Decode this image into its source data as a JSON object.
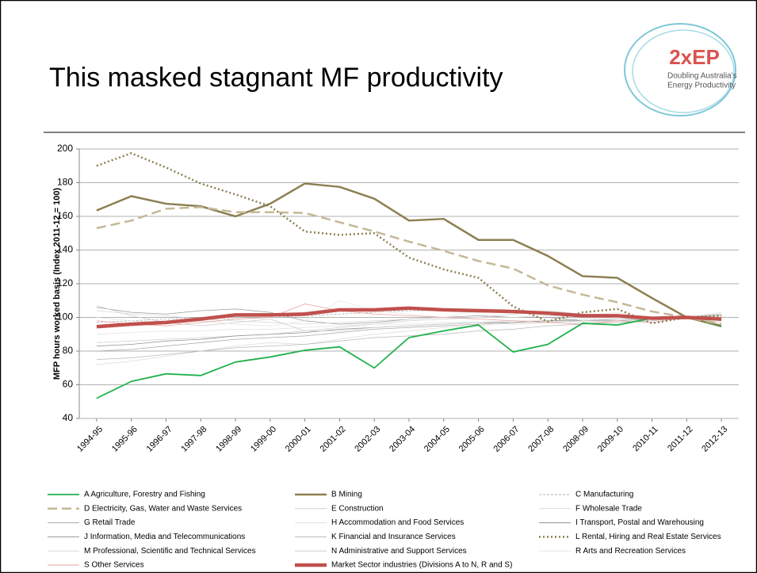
{
  "logo": {
    "name": "2xEP",
    "tagline": [
      "Doubling Australia's",
      "Energy Productivity"
    ]
  },
  "chart_data": {
    "type": "line",
    "title": "This masked stagnant MF productivity",
    "y_label": "MFP hours worked basis (Index 2011-12 = 100)",
    "categories": [
      "1994-95",
      "1995-96",
      "1996-97",
      "1997-98",
      "1998-99",
      "1999-00",
      "2000-01",
      "2001-02",
      "2002-03",
      "2003-04",
      "2004-05",
      "2005-06",
      "2006-07",
      "2007-08",
      "2008-09",
      "2009-10",
      "2010-11",
      "2011-12",
      "2012-13"
    ],
    "ylim": [
      40,
      200
    ],
    "yticks": [
      40,
      60,
      80,
      100,
      120,
      140,
      160,
      180,
      200
    ],
    "grid": true,
    "series": [
      {
        "name": "A Agriculture, Forestry and Fishing",
        "color": "#22b14c",
        "width": 1.8,
        "line_style": "solid",
        "values": [
          52,
          62,
          66.5,
          65.5,
          73.5,
          76.5,
          80.5,
          82.5,
          70,
          88,
          92,
          95.5,
          79.5,
          84,
          96.5,
          95.5,
          99.5,
          100,
          94.5
        ]
      },
      {
        "name": "B Mining",
        "color": "#8c7f52",
        "width": 2.5,
        "line_style": "solid",
        "values": [
          163.5,
          172,
          167.5,
          166,
          160,
          167.5,
          179.5,
          177.5,
          170.5,
          157.5,
          158.5,
          146,
          146,
          136.5,
          124.5,
          123.5,
          111.5,
          100,
          95
        ]
      },
      {
        "name": "C Manufacturing",
        "color": "#b0b0b0",
        "width": 0.8,
        "line_style": "dashed",
        "values": [
          97,
          98,
          99,
          100,
          99,
          100,
          101,
          102,
          103,
          104,
          104,
          103,
          103,
          102,
          101,
          101,
          100,
          100,
          101
        ]
      },
      {
        "name": "D Electricity, Gas, Water and Waste Services",
        "color": "#c4b896",
        "width": 2.5,
        "line_style": "dashed",
        "values": [
          153,
          157.5,
          164.5,
          165.5,
          162.5,
          162.5,
          162,
          156.5,
          151,
          145,
          139.5,
          133.5,
          129,
          119,
          113.5,
          109,
          103.5,
          100,
          96
        ]
      },
      {
        "name": "E Construction",
        "color": "#d0d0d0",
        "width": 0.8,
        "line_style": "solid",
        "values": [
          85,
          86,
          87,
          88,
          89,
          90,
          92,
          94,
          96,
          98,
          99,
          100,
          102,
          104,
          102,
          100,
          99,
          100,
          102
        ]
      },
      {
        "name": "F Wholesale Trade",
        "color": "#dcdcdc",
        "width": 0.8,
        "line_style": "solid",
        "values": [
          72,
          74,
          77,
          80,
          83,
          85,
          84,
          87,
          90,
          92,
          94,
          95,
          97,
          98,
          97,
          98,
          99,
          100,
          103
        ]
      },
      {
        "name": "G Retail Trade",
        "color": "#a8a8a8",
        "width": 0.8,
        "line_style": "solid",
        "values": [
          80,
          81,
          83,
          85,
          87,
          88,
          89,
          91,
          93,
          94,
          95,
          96,
          97,
          98,
          99,
          99,
          100,
          100,
          101
        ]
      },
      {
        "name": "H Accommodation and Food Services",
        "color": "#e2e2e2",
        "width": 0.8,
        "line_style": "solid",
        "values": [
          90,
          91,
          92,
          92,
          93,
          93,
          94,
          95,
          96,
          96,
          97,
          97,
          98,
          98,
          99,
          99,
          100,
          100,
          100
        ]
      },
      {
        "name": "I Transport, Postal and Warehousing",
        "color": "#909090",
        "width": 0.8,
        "line_style": "solid",
        "values": [
          83,
          84,
          86,
          87,
          89,
          90,
          91,
          93,
          94,
          95,
          96,
          97,
          97,
          98,
          98,
          99,
          99,
          100,
          100
        ]
      },
      {
        "name": "J Information, Media and Telecommunications",
        "color": "#9a9a9a",
        "width": 0.8,
        "line_style": "solid",
        "values": [
          106,
          103,
          102,
          104,
          105,
          103,
          98,
          96,
          97,
          99,
          100,
          101,
          100,
          100,
          98,
          98,
          99,
          100,
          98
        ]
      },
      {
        "name": "K Financial and Insurance Services",
        "color": "#b8b8b8",
        "width": 0.8,
        "line_style": "solid",
        "values": [
          75,
          76,
          78,
          80,
          82,
          83,
          84,
          86,
          88,
          89,
          90,
          92,
          93,
          95,
          96,
          97,
          98,
          100,
          102
        ]
      },
      {
        "name": "L Rental, Hiring and Real Estate Services",
        "color": "#8c7f52",
        "width": 2.5,
        "line_style": "dotted",
        "values": [
          190,
          197.5,
          189,
          179.5,
          173,
          166,
          151,
          149,
          150,
          135.5,
          128.5,
          123.5,
          106.5,
          97.5,
          103,
          105,
          96.5,
          100,
          101
        ]
      },
      {
        "name": "M Professional, Scientific and Technical Services",
        "color": "#d8d8d8",
        "width": 0.8,
        "line_style": "solid",
        "values": [
          104,
          102,
          101,
          99,
          98,
          97,
          96,
          97,
          98,
          99,
          100,
          100,
          100,
          101,
          101,
          100,
          100,
          100,
          100
        ]
      },
      {
        "name": "N Administrative and Support Services",
        "color": "#cfcfcf",
        "width": 0.8,
        "line_style": "solid",
        "values": [
          107,
          101,
          97,
          95,
          97,
          99,
          92,
          92,
          94,
          95,
          96,
          97,
          96,
          97,
          98,
          99,
          99,
          100,
          97
        ]
      },
      {
        "name": "R Arts and Recreation Services",
        "color": "#e6e6e6",
        "width": 0.8,
        "line_style": "solid",
        "values": [
          100,
          98,
          97,
          98,
          96,
          95,
          98,
          110,
          104,
          102,
          100,
          104,
          103,
          104,
          101,
          103,
          99,
          100,
          96
        ]
      },
      {
        "name": "S Other Services",
        "color": "#e8a0a0",
        "width": 0.8,
        "line_style": "solid",
        "values": [
          98,
          96,
          95,
          97,
          99,
          100,
          108,
          104,
          102,
          101,
          100,
          99,
          98,
          97,
          96,
          98,
          97,
          100,
          100
        ]
      },
      {
        "name": "Market Sector industries (Divisions A to N, R and S)",
        "color": "#c0504d",
        "width": 4.5,
        "line_style": "solid",
        "values": [
          94.5,
          96,
          97,
          99,
          101.5,
          101.5,
          102,
          104.5,
          104.5,
          105.5,
          104.5,
          104,
          103.5,
          102.5,
          101,
          101,
          99.5,
          100,
          99
        ]
      }
    ]
  }
}
